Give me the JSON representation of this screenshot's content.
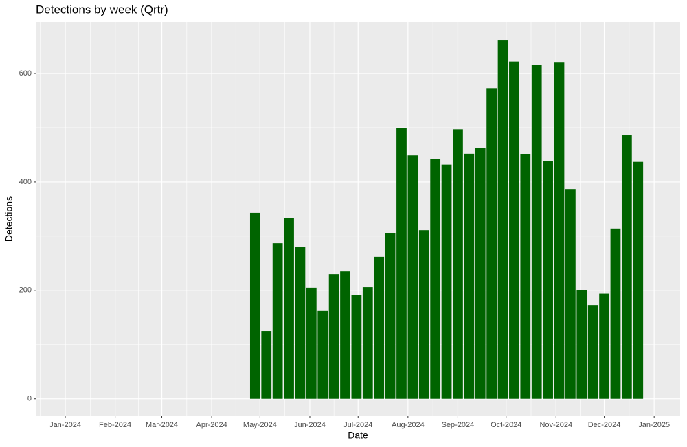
{
  "chart_data": {
    "type": "bar",
    "title": "Detections by week (Qrtr)",
    "xlabel": "Date",
    "ylabel": "Detections",
    "categories": [
      null,
      null,
      null,
      null,
      null,
      null,
      null,
      null,
      null,
      null,
      null,
      null,
      null,
      null,
      null,
      null,
      null,
      null,
      null,
      null,
      null,
      null,
      null,
      null,
      null,
      null,
      null,
      null,
      null,
      null,
      null,
      null,
      null,
      null,
      null
    ],
    "values": [
      343,
      125,
      287,
      334,
      280,
      205,
      162,
      230,
      235,
      192,
      206,
      262,
      306,
      499,
      449,
      311,
      442,
      432,
      497,
      452,
      462,
      573,
      662,
      622,
      451,
      616,
      439,
      620,
      387,
      201,
      173,
      194,
      314,
      486,
      437
    ],
    "color": "#006400",
    "ylim": [
      -32,
      695
    ],
    "yticks": [
      0,
      200,
      400,
      600
    ],
    "xticks": [
      "Jan-2024",
      "Feb-2024",
      "Mar-2024",
      "Apr-2024",
      "May-2024",
      "Jun-2024",
      "Jul-2024",
      "Aug-2024",
      "Sep-2024",
      "Oct-2024",
      "Nov-2024",
      "Dec-2024",
      "Jan-2025"
    ],
    "grid": true
  }
}
